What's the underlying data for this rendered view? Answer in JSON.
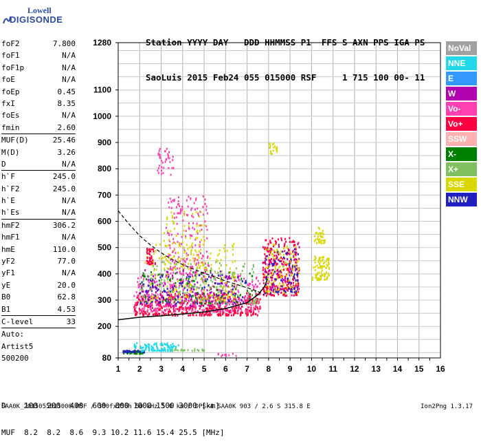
{
  "logo": {
    "line1": "Lowell",
    "line2": "DIGISONDE"
  },
  "header": {
    "line1": "Station YYYY DAY   DDD HHMMSS P1  FFS S AXN PPS IGA PS",
    "line2": "SaoLuis 2015 Feb24 055 015000 RSF     1 715 100 00- 11"
  },
  "params": {
    "group1": [
      {
        "name": "foF2",
        "value": "7.800"
      },
      {
        "name": "foF1",
        "value": "N/A"
      },
      {
        "name": "foF1p",
        "value": "N/A"
      },
      {
        "name": "foE",
        "value": "N/A"
      },
      {
        "name": "foEp",
        "value": "0.45"
      },
      {
        "name": "fxI",
        "value": "8.35"
      },
      {
        "name": "foEs",
        "value": "N/A"
      },
      {
        "name": "fmin",
        "value": "2.60"
      }
    ],
    "group2": [
      {
        "name": "MUF(D)",
        "value": "25.46"
      },
      {
        "name": "M(D)",
        "value": "3.26"
      },
      {
        "name": "D",
        "value": "N/A"
      }
    ],
    "group3": [
      {
        "name": "h`F",
        "value": "245.0"
      },
      {
        "name": "h`F2",
        "value": "245.0"
      },
      {
        "name": "h`E",
        "value": "N/A"
      },
      {
        "name": "h`Es",
        "value": "N/A"
      }
    ],
    "group4": [
      {
        "name": "hmF2",
        "value": "306.2"
      },
      {
        "name": "hmF1",
        "value": "N/A"
      },
      {
        "name": "hmE",
        "value": "110.0"
      },
      {
        "name": "yF2",
        "value": "77.0"
      },
      {
        "name": "yF1",
        "value": "N/A"
      },
      {
        "name": "yE",
        "value": "20.0"
      },
      {
        "name": "B0",
        "value": "62.8"
      },
      {
        "name": "B1",
        "value": "4.53"
      }
    ],
    "clevel": {
      "name": "C-level",
      "value": "33"
    },
    "auto": [
      "Auto:",
      "Artist5",
      "500200"
    ]
  },
  "legend": [
    {
      "label": "NoVal",
      "color": "#a0a0a0"
    },
    {
      "label": "NNE",
      "color": "#22d8e8"
    },
    {
      "label": "E",
      "color": "#3399ff"
    },
    {
      "label": "W",
      "color": "#b000b0"
    },
    {
      "label": "Vo-",
      "color": "#ff40b0"
    },
    {
      "label": "Vo+",
      "color": "#ff0040"
    },
    {
      "label": "SSW",
      "color": "#ffb0b0"
    },
    {
      "label": "X-",
      "color": "#008000"
    },
    {
      "label": "X+",
      "color": "#80c060"
    },
    {
      "label": "SSE",
      "color": "#d8d800"
    },
    {
      "label": "NNW",
      "color": "#2020c0"
    }
  ],
  "footer": {
    "d_row": "D    100  200  400  600  800 1000 1500 3000 [km]",
    "muf_row": "MUF  8.2  8.2  8.6  9.3 10.2 11.6 15.4 25.5 [MHz]",
    "info": "SAA0K_2015055015000.RSF / 300fx256h 50 kHz 5.0 km / DPS-4 SAA0K 903 / 2.6 S 315.8 E",
    "version": "Ion2Png 1.3.17"
  },
  "chart_data": {
    "type": "scatter",
    "xlim": [
      1,
      16
    ],
    "ylim": [
      80,
      1280
    ],
    "x_ticks": [
      1,
      2,
      3,
      4,
      5,
      6,
      7,
      8,
      9,
      10,
      11,
      12,
      13,
      14,
      15,
      16
    ],
    "y_ticks": [
      80,
      200,
      300,
      400,
      500,
      600,
      700,
      800,
      900,
      1000,
      1100,
      1280
    ],
    "trace_O": {
      "x": [
        1.0,
        2.0,
        3.0,
        4.0,
        5.0,
        6.0,
        7.0,
        7.5,
        7.8,
        7.95
      ],
      "y": [
        225,
        235,
        240,
        247,
        255,
        268,
        290,
        320,
        350,
        380
      ]
    },
    "profile": {
      "x": [
        1.0,
        1.5,
        2.0,
        2.5,
        3.0,
        3.5,
        4.0,
        4.5,
        5.0,
        5.5,
        6.0,
        6.5,
        7.0,
        7.5,
        7.8
      ],
      "y": [
        640,
        590,
        545,
        510,
        480,
        455,
        435,
        418,
        402,
        388,
        373,
        360,
        347,
        333,
        320
      ]
    },
    "clusters": [
      {
        "color": "#ff0040",
        "x": [
          1.7,
          7.6
        ],
        "y": [
          245,
          330
        ],
        "n": 500
      },
      {
        "color": "#ff40b0",
        "x": [
          1.7,
          7.6
        ],
        "y": [
          260,
          400
        ],
        "n": 320
      },
      {
        "color": "#b000b0",
        "x": [
          2.0,
          6.5
        ],
        "y": [
          280,
          420
        ],
        "n": 180
      },
      {
        "color": "#2020c0",
        "x": [
          2.0,
          7.0
        ],
        "y": [
          290,
          400
        ],
        "n": 120
      },
      {
        "color": "#d8d800",
        "x": [
          2.2,
          6.5
        ],
        "y": [
          300,
          520
        ],
        "n": 180
      },
      {
        "color": "#80c060",
        "x": [
          2.0,
          7.5
        ],
        "y": [
          290,
          450
        ],
        "n": 160
      },
      {
        "color": "#008000",
        "x": [
          2.0,
          7.5
        ],
        "y": [
          290,
          420
        ],
        "n": 70
      },
      {
        "color": "#ff40b0",
        "x": [
          3.2,
          5.2
        ],
        "y": [
          400,
          700
        ],
        "n": 180
      },
      {
        "color": "#d8d800",
        "x": [
          3.0,
          5.0
        ],
        "y": [
          420,
          640
        ],
        "n": 90
      },
      {
        "color": "#ff0040",
        "x": [
          7.7,
          9.4
        ],
        "y": [
          320,
          540
        ],
        "n": 280
      },
      {
        "color": "#b000b0",
        "x": [
          7.8,
          9.4
        ],
        "y": [
          340,
          520
        ],
        "n": 90
      },
      {
        "color": "#d8d800",
        "x": [
          7.8,
          9.4
        ],
        "y": [
          330,
          520
        ],
        "n": 110
      },
      {
        "color": "#2020c0",
        "x": [
          7.8,
          9.4
        ],
        "y": [
          330,
          500
        ],
        "n": 60
      },
      {
        "color": "#ff40b0",
        "x": [
          2.8,
          3.6
        ],
        "y": [
          780,
          880
        ],
        "n": 40
      },
      {
        "color": "#d8d800",
        "x": [
          10.0,
          10.8
        ],
        "y": [
          380,
          430
        ],
        "n": 50
      },
      {
        "color": "#d8d800",
        "x": [
          10.1,
          10.8
        ],
        "y": [
          430,
          470
        ],
        "n": 40
      },
      {
        "color": "#d8d800",
        "x": [
          10.1,
          10.6
        ],
        "y": [
          520,
          580
        ],
        "n": 35
      },
      {
        "color": "#d8d800",
        "x": [
          8.0,
          8.4
        ],
        "y": [
          860,
          900
        ],
        "n": 20
      },
      {
        "color": "#22d8e8",
        "x": [
          1.7,
          3.8
        ],
        "y": [
          120,
          140
        ],
        "n": 60
      },
      {
        "color": "#008000",
        "x": [
          1.2,
          2.2
        ],
        "y": [
          100,
          110
        ],
        "n": 50
      },
      {
        "color": "#2020c0",
        "x": [
          1.2,
          2.2
        ],
        "y": [
          105,
          112
        ],
        "n": 30
      },
      {
        "color": "#22d8e8",
        "x": [
          2.0,
          3.5
        ],
        "y": [
          110,
          118
        ],
        "n": 40
      },
      {
        "color": "#80c060",
        "x": [
          3.5,
          5.0
        ],
        "y": [
          110,
          118
        ],
        "n": 20
      },
      {
        "color": "#ff40b0",
        "x": [
          5.5,
          6.5
        ],
        "y": [
          90,
          100
        ],
        "n": 10
      },
      {
        "color": "#ff0040",
        "x": [
          2.3,
          2.7
        ],
        "y": [
          440,
          500
        ],
        "n": 40
      }
    ]
  }
}
